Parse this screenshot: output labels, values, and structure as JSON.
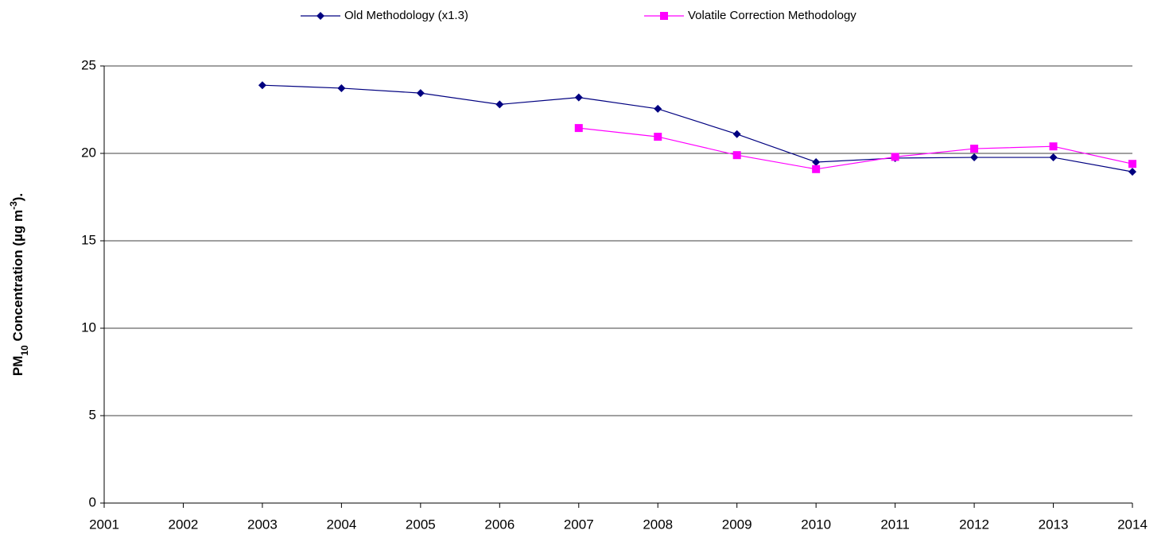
{
  "chart_data": {
    "type": "line",
    "y_label": [
      "PM",
      "10",
      " Concentration (µg m",
      "-3",
      ")."
    ],
    "x": [
      2003,
      2004,
      2005,
      2006,
      2007,
      2008,
      2009,
      2010,
      2011,
      2012,
      2013,
      2014
    ],
    "series": [
      {
        "name": "Old Methodology (x1.3)",
        "color": "#000080",
        "marker": "diamond",
        "values": [
          23.9,
          23.73,
          23.45,
          22.8,
          23.2,
          22.55,
          21.1,
          19.5,
          19.73,
          19.77,
          19.77,
          18.95
        ]
      },
      {
        "name": "Volatile Correction Methodology",
        "color": "#ff00ff",
        "marker": "square",
        "values": [
          null,
          null,
          null,
          null,
          21.45,
          20.95,
          19.9,
          19.1,
          19.8,
          20.27,
          20.4,
          19.4
        ]
      }
    ],
    "xlim": [
      2001,
      2014
    ],
    "xticks": [
      2001,
      2002,
      2003,
      2004,
      2005,
      2006,
      2007,
      2008,
      2009,
      2010,
      2011,
      2012,
      2013,
      2014
    ],
    "ylim": [
      0,
      25
    ],
    "yticks": [
      0,
      5,
      10,
      15,
      20,
      25
    ],
    "grid": true
  }
}
